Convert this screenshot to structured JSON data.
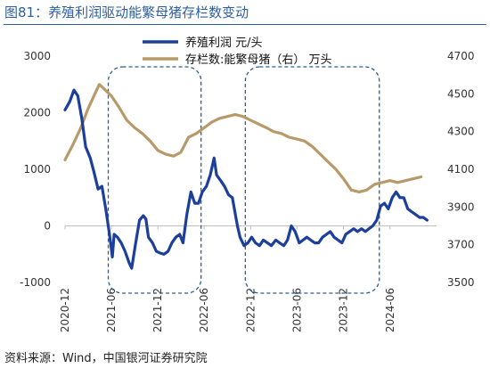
{
  "figure": {
    "title": "图81：养殖利润驱动能繁母猪存栏数变动",
    "source": "资料来源：Wind，中国银河证券研究院"
  },
  "colors": {
    "title": "#2f5f9e",
    "profit": "#1c3f9c",
    "sows": "#b89a6a",
    "highlight_box": "#2a5d8f"
  },
  "chart_data": {
    "type": "line",
    "title": "",
    "xlabel": "",
    "ylabel": "",
    "y_left_lim": [
      -1000,
      3000
    ],
    "y_left_ticks": [
      "3000",
      "2000",
      "1000",
      "0",
      "-1000"
    ],
    "y_right_lim": [
      3500,
      4700
    ],
    "y_right_ticks": [
      "4700",
      "4500",
      "4300",
      "4100",
      "3900",
      "3700",
      "3500"
    ],
    "x_range": [
      "2020-12",
      "2024-12"
    ],
    "x_tick_labels": [
      "2020-12",
      "2021-06",
      "2021-12",
      "2022-06",
      "2022-12",
      "2023-06",
      "2023-12",
      "2024-06"
    ],
    "grid": false,
    "legend_position": "top-center",
    "series": [
      {
        "name": "养殖利润 元/头",
        "axis": "left",
        "points": [
          [
            "2020-12-01",
            2050
          ],
          [
            "2020-12-20",
            2200
          ],
          [
            "2021-01-05",
            2400
          ],
          [
            "2021-01-20",
            2300
          ],
          [
            "2021-02-05",
            1900
          ],
          [
            "2021-02-20",
            1400
          ],
          [
            "2021-03-10",
            1200
          ],
          [
            "2021-03-25",
            950
          ],
          [
            "2021-04-10",
            650
          ],
          [
            "2021-04-25",
            700
          ],
          [
            "2021-05-10",
            300
          ],
          [
            "2021-05-25",
            -150
          ],
          [
            "2021-06-05",
            -550
          ],
          [
            "2021-06-12",
            -150
          ],
          [
            "2021-06-25",
            -200
          ],
          [
            "2021-07-10",
            -300
          ],
          [
            "2021-07-25",
            -450
          ],
          [
            "2021-08-10",
            -650
          ],
          [
            "2021-08-20",
            -750
          ],
          [
            "2021-09-05",
            -300
          ],
          [
            "2021-09-20",
            100
          ],
          [
            "2021-10-05",
            180
          ],
          [
            "2021-10-15",
            120
          ],
          [
            "2021-10-25",
            -200
          ],
          [
            "2021-11-10",
            -300
          ],
          [
            "2021-11-25",
            -450
          ],
          [
            "2021-12-10",
            -480
          ],
          [
            "2021-12-25",
            -500
          ],
          [
            "2022-01-10",
            -450
          ],
          [
            "2022-01-25",
            -300
          ],
          [
            "2022-02-10",
            -200
          ],
          [
            "2022-02-25",
            -150
          ],
          [
            "2022-03-10",
            -300
          ],
          [
            "2022-03-25",
            200
          ],
          [
            "2022-04-10",
            600
          ],
          [
            "2022-04-25",
            400
          ],
          [
            "2022-05-10",
            400
          ],
          [
            "2022-05-25",
            600
          ],
          [
            "2022-06-10",
            700
          ],
          [
            "2022-06-25",
            900
          ],
          [
            "2022-07-10",
            1200
          ],
          [
            "2022-07-20",
            900
          ],
          [
            "2022-08-05",
            800
          ],
          [
            "2022-08-20",
            700
          ],
          [
            "2022-09-05",
            550
          ],
          [
            "2022-09-20",
            500
          ],
          [
            "2022-10-10",
            0
          ],
          [
            "2022-10-20",
            -200
          ],
          [
            "2022-11-05",
            -350
          ],
          [
            "2022-11-20",
            -300
          ],
          [
            "2022-12-05",
            -200
          ],
          [
            "2022-12-20",
            -300
          ],
          [
            "2023-01-05",
            -350
          ],
          [
            "2023-01-20",
            -250
          ],
          [
            "2023-02-05",
            -300
          ],
          [
            "2023-02-20",
            -350
          ],
          [
            "2023-03-10",
            -250
          ],
          [
            "2023-03-25",
            -300
          ],
          [
            "2023-04-10",
            -350
          ],
          [
            "2023-04-25",
            -250
          ],
          [
            "2023-05-10",
            0
          ],
          [
            "2023-05-25",
            -100
          ],
          [
            "2023-06-10",
            -300
          ],
          [
            "2023-06-25",
            -250
          ],
          [
            "2023-07-10",
            -200
          ],
          [
            "2023-07-25",
            -250
          ],
          [
            "2023-08-10",
            -300
          ],
          [
            "2023-08-25",
            -300
          ],
          [
            "2023-09-10",
            -200
          ],
          [
            "2023-09-25",
            -150
          ],
          [
            "2023-10-10",
            -100
          ],
          [
            "2023-10-25",
            -200
          ],
          [
            "2023-11-10",
            -250
          ],
          [
            "2023-11-25",
            -300
          ],
          [
            "2023-12-10",
            -150
          ],
          [
            "2023-12-25",
            -100
          ],
          [
            "2024-01-10",
            -50
          ],
          [
            "2024-01-25",
            -100
          ],
          [
            "2024-02-10",
            -50
          ],
          [
            "2024-02-25",
            -100
          ],
          [
            "2024-03-10",
            -50
          ],
          [
            "2024-03-25",
            0
          ],
          [
            "2024-04-10",
            100
          ],
          [
            "2024-04-25",
            350
          ],
          [
            "2024-05-10",
            400
          ],
          [
            "2024-05-25",
            300
          ],
          [
            "2024-06-10",
            500
          ],
          [
            "2024-06-25",
            600
          ],
          [
            "2024-07-10",
            500
          ],
          [
            "2024-07-25",
            500
          ],
          [
            "2024-08-10",
            300
          ],
          [
            "2024-08-25",
            250
          ],
          [
            "2024-09-10",
            200
          ],
          [
            "2024-09-25",
            150
          ],
          [
            "2024-10-10",
            150
          ],
          [
            "2024-10-25",
            100
          ]
        ]
      },
      {
        "name": "存栏数:能繁母猪（右） 万头",
        "axis": "right",
        "points": [
          [
            "2020-12-01",
            4150
          ],
          [
            "2021-01-01",
            4230
          ],
          [
            "2021-02-01",
            4320
          ],
          [
            "2021-03-01",
            4420
          ],
          [
            "2021-04-01",
            4510
          ],
          [
            "2021-04-15",
            4550
          ],
          [
            "2021-05-01",
            4530
          ],
          [
            "2021-06-01",
            4490
          ],
          [
            "2021-07-01",
            4430
          ],
          [
            "2021-08-01",
            4360
          ],
          [
            "2021-09-01",
            4320
          ],
          [
            "2021-10-01",
            4290
          ],
          [
            "2021-11-01",
            4250
          ],
          [
            "2021-12-01",
            4200
          ],
          [
            "2022-01-01",
            4180
          ],
          [
            "2022-02-01",
            4170
          ],
          [
            "2022-03-01",
            4190
          ],
          [
            "2022-04-01",
            4270
          ],
          [
            "2022-05-01",
            4290
          ],
          [
            "2022-06-01",
            4320
          ],
          [
            "2022-07-01",
            4350
          ],
          [
            "2022-08-01",
            4370
          ],
          [
            "2022-09-01",
            4380
          ],
          [
            "2022-10-01",
            4390
          ],
          [
            "2022-11-01",
            4380
          ],
          [
            "2022-12-01",
            4360
          ],
          [
            "2023-01-01",
            4340
          ],
          [
            "2023-02-01",
            4320
          ],
          [
            "2023-03-01",
            4300
          ],
          [
            "2023-04-01",
            4290
          ],
          [
            "2023-05-01",
            4270
          ],
          [
            "2023-06-01",
            4260
          ],
          [
            "2023-07-01",
            4250
          ],
          [
            "2023-08-01",
            4220
          ],
          [
            "2023-09-01",
            4180
          ],
          [
            "2023-10-01",
            4140
          ],
          [
            "2023-11-01",
            4100
          ],
          [
            "2023-12-01",
            4050
          ],
          [
            "2024-01-01",
            3990
          ],
          [
            "2024-02-01",
            3980
          ],
          [
            "2024-03-01",
            3990
          ],
          [
            "2024-04-01",
            4020
          ],
          [
            "2024-05-01",
            4030
          ],
          [
            "2024-06-01",
            4040
          ],
          [
            "2024-07-01",
            4030
          ],
          [
            "2024-08-01",
            4040
          ],
          [
            "2024-09-01",
            4050
          ],
          [
            "2024-10-01",
            4060
          ]
        ]
      }
    ],
    "highlight_ranges": [
      [
        "2021-05-20",
        "2022-05-20"
      ],
      [
        "2022-11-10",
        "2024-04-20"
      ]
    ]
  }
}
